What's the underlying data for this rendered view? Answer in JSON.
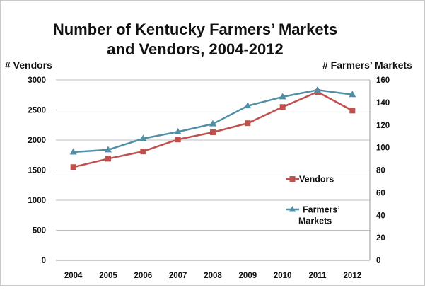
{
  "chart_data": {
    "type": "line",
    "title_lines": [
      "Number of Kentucky Farmers’ Markets",
      "and Vendors, 2004-2012"
    ],
    "y_left_label": "# Vendors",
    "y_right_label": "# Farmers’ Markets",
    "categories": [
      "2004",
      "2005",
      "2006",
      "2007",
      "2008",
      "2009",
      "2010",
      "2011",
      "2012"
    ],
    "y_left": {
      "min": 0,
      "max": 3000,
      "step": 500,
      "ticks": [
        "0",
        "500",
        "1000",
        "1500",
        "2000",
        "2500",
        "3000"
      ]
    },
    "y_right": {
      "min": 0,
      "max": 160,
      "step": 20,
      "ticks": [
        "0",
        "20",
        "40",
        "60",
        "80",
        "100",
        "120",
        "140",
        "160"
      ]
    },
    "grid": true,
    "legend_position": "right-inside",
    "series": [
      {
        "name": "Vendors",
        "axis": "left",
        "color": "#c0504d",
        "marker": "square",
        "values": [
          1550,
          1690,
          1810,
          2010,
          2130,
          2280,
          2550,
          2800,
          2490
        ]
      },
      {
        "name": "Farmers’ Markets",
        "legend_lines": [
          "Farmers’",
          "Markets"
        ],
        "axis": "right",
        "color": "#4f8fa6",
        "marker": "triangle",
        "values": [
          96,
          98,
          108,
          114,
          121,
          137,
          145,
          151,
          147
        ]
      }
    ]
  }
}
